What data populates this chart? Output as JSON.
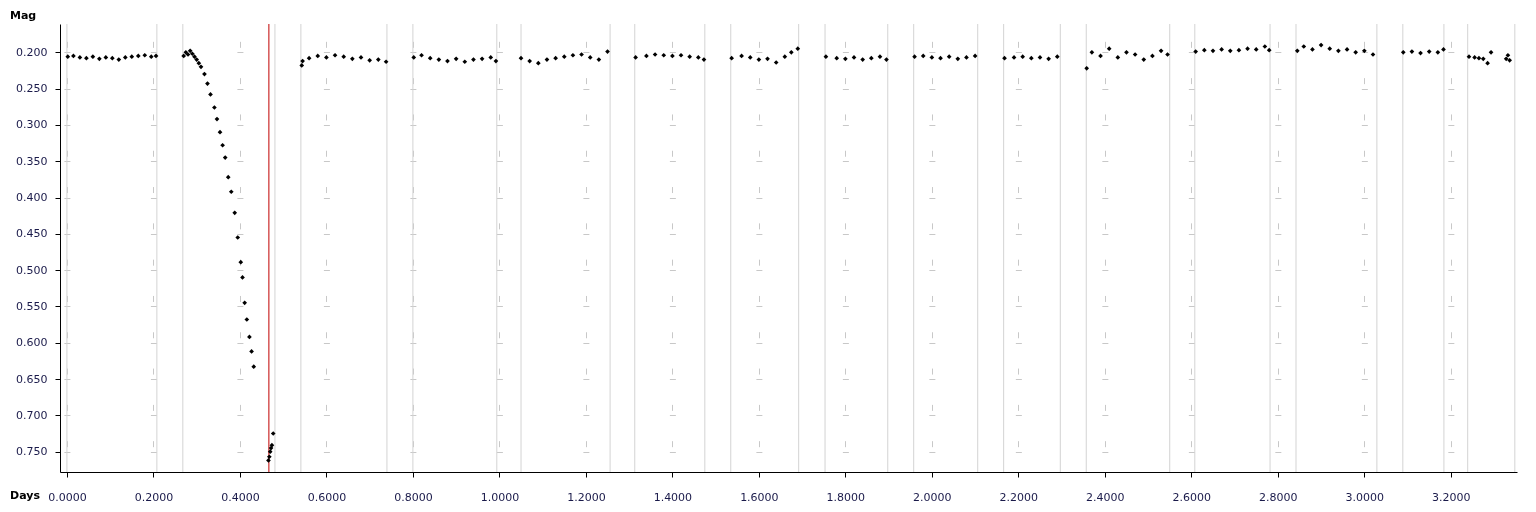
{
  "chart_data": {
    "type": "scatter",
    "xlabel": "Days",
    "ylabel": "Mag",
    "marker": "diamond",
    "grid": true,
    "xlim": [
      -0.016,
      3.353
    ],
    "ylim": [
      0.778,
      0.161
    ],
    "xticks": [
      {
        "value": 0,
        "label": "0.0000"
      },
      {
        "value": 0.2,
        "label": "0.2000"
      },
      {
        "value": 0.4,
        "label": "0.4000"
      },
      {
        "value": 0.6,
        "label": "0.6000"
      },
      {
        "value": 0.8,
        "label": "0.8000"
      },
      {
        "value": 1.0,
        "label": "1.0000"
      },
      {
        "value": 1.2,
        "label": "1.2000"
      },
      {
        "value": 1.4,
        "label": "1.4000"
      },
      {
        "value": 1.6,
        "label": "1.6000"
      },
      {
        "value": 1.8,
        "label": "1.8000"
      },
      {
        "value": 2.0,
        "label": "2.0000"
      },
      {
        "value": 2.2,
        "label": "2.2000"
      },
      {
        "value": 2.4,
        "label": "2.4000"
      },
      {
        "value": 2.6,
        "label": "2.6000"
      },
      {
        "value": 2.8,
        "label": "2.8000"
      },
      {
        "value": 3.0,
        "label": "3.0000"
      },
      {
        "value": 3.2,
        "label": "3.2000"
      }
    ],
    "yticks": [
      {
        "value": 0.2,
        "label": "0.200"
      },
      {
        "value": 0.25,
        "label": "0.250"
      },
      {
        "value": 0.3,
        "label": "0.300"
      },
      {
        "value": 0.35,
        "label": "0.350"
      },
      {
        "value": 0.4,
        "label": "0.400"
      },
      {
        "value": 0.45,
        "label": "0.450"
      },
      {
        "value": 0.5,
        "label": "0.500"
      },
      {
        "value": 0.55,
        "label": "0.550"
      },
      {
        "value": 0.6,
        "label": "0.600"
      },
      {
        "value": 0.65,
        "label": "0.650"
      },
      {
        "value": 0.7,
        "label": "0.700"
      },
      {
        "value": 0.75,
        "label": "0.750"
      }
    ],
    "ref_lines": [
      {
        "axis": "x",
        "value": 0.0,
        "color": "#d3d3d3"
      },
      {
        "axis": "x",
        "value": 0.208,
        "color": "#d3d3d3"
      },
      {
        "axis": "x",
        "value": 0.268,
        "color": "#d3d3d3"
      },
      {
        "axis": "x",
        "value": 0.481,
        "color": "#d3d3d3"
      },
      {
        "axis": "x",
        "value": 0.541,
        "color": "#d3d3d3"
      },
      {
        "axis": "x",
        "value": 0.74,
        "color": "#d3d3d3"
      },
      {
        "axis": "x",
        "value": 0.8,
        "color": "#d3d3d3"
      },
      {
        "axis": "x",
        "value": 0.994,
        "color": "#d3d3d3"
      },
      {
        "axis": "x",
        "value": 1.05,
        "color": "#d3d3d3"
      },
      {
        "axis": "x",
        "value": 1.256,
        "color": "#d3d3d3"
      },
      {
        "axis": "x",
        "value": 1.313,
        "color": "#d3d3d3"
      },
      {
        "axis": "x",
        "value": 1.475,
        "color": "#d3d3d3"
      },
      {
        "axis": "x",
        "value": 1.535,
        "color": "#d3d3d3"
      },
      {
        "axis": "x",
        "value": 1.692,
        "color": "#d3d3d3"
      },
      {
        "axis": "x",
        "value": 1.753,
        "color": "#d3d3d3"
      },
      {
        "axis": "x",
        "value": 1.898,
        "color": "#d3d3d3"
      },
      {
        "axis": "x",
        "value": 1.958,
        "color": "#d3d3d3"
      },
      {
        "axis": "x",
        "value": 2.106,
        "color": "#d3d3d3"
      },
      {
        "axis": "x",
        "value": 2.166,
        "color": "#d3d3d3"
      },
      {
        "axis": "x",
        "value": 2.297,
        "color": "#d3d3d3"
      },
      {
        "axis": "x",
        "value": 2.357,
        "color": "#d3d3d3"
      },
      {
        "axis": "x",
        "value": 2.55,
        "color": "#d3d3d3"
      },
      {
        "axis": "x",
        "value": 2.608,
        "color": "#d3d3d3"
      },
      {
        "axis": "x",
        "value": 2.782,
        "color": "#d3d3d3"
      },
      {
        "axis": "x",
        "value": 2.842,
        "color": "#d3d3d3"
      },
      {
        "axis": "x",
        "value": 3.029,
        "color": "#d3d3d3"
      },
      {
        "axis": "x",
        "value": 3.089,
        "color": "#d3d3d3"
      },
      {
        "axis": "x",
        "value": 3.184,
        "color": "#d3d3d3"
      },
      {
        "axis": "x",
        "value": 3.239,
        "color": "#d3d3d3"
      },
      {
        "axis": "x",
        "value": 3.348,
        "color": "#d3d3d3"
      },
      {
        "axis": "x",
        "value": 0.467,
        "color": "#c00000"
      }
    ],
    "series": [
      {
        "color": "#000000",
        "x": [
          0.002,
          0.015,
          0.03,
          0.045,
          0.06,
          0.075,
          0.09,
          0.105,
          0.12,
          0.135,
          0.15,
          0.165,
          0.18,
          0.195,
          0.206,
          0.27,
          0.275,
          0.28,
          0.285,
          0.29,
          0.295,
          0.3,
          0.305,
          0.31,
          0.318,
          0.325,
          0.332,
          0.341,
          0.347,
          0.354,
          0.36,
          0.366,
          0.373,
          0.38,
          0.388,
          0.395,
          0.402,
          0.406,
          0.411,
          0.416,
          0.422,
          0.427,
          0.432,
          0.466,
          0.468,
          0.47,
          0.472,
          0.474,
          0.477,
          0.543,
          0.545,
          0.56,
          0.58,
          0.6,
          0.62,
          0.64,
          0.66,
          0.68,
          0.7,
          0.72,
          0.738,
          0.802,
          0.82,
          0.84,
          0.86,
          0.88,
          0.9,
          0.92,
          0.94,
          0.96,
          0.98,
          0.992,
          1.05,
          1.07,
          1.09,
          1.11,
          1.13,
          1.15,
          1.17,
          1.19,
          1.21,
          1.23,
          1.25,
          1.315,
          1.34,
          1.36,
          1.38,
          1.4,
          1.42,
          1.44,
          1.46,
          1.473,
          1.537,
          1.56,
          1.58,
          1.6,
          1.62,
          1.64,
          1.66,
          1.675,
          1.69,
          1.755,
          1.78,
          1.8,
          1.82,
          1.84,
          1.86,
          1.88,
          1.895,
          1.96,
          1.98,
          2.0,
          2.02,
          2.04,
          2.06,
          2.08,
          2.1,
          2.168,
          2.19,
          2.21,
          2.23,
          2.25,
          2.27,
          2.29,
          2.358,
          2.37,
          2.39,
          2.41,
          2.43,
          2.45,
          2.47,
          2.49,
          2.51,
          2.53,
          2.545,
          2.61,
          2.63,
          2.65,
          2.67,
          2.69,
          2.71,
          2.73,
          2.75,
          2.77,
          2.78,
          2.845,
          2.86,
          2.88,
          2.9,
          2.92,
          2.94,
          2.96,
          2.98,
          3.0,
          3.02,
          3.09,
          3.11,
          3.13,
          3.15,
          3.17,
          3.183,
          3.242,
          3.255,
          3.265,
          3.275,
          3.285,
          3.293,
          3.328,
          3.332,
          3.336
        ],
        "values": [
          0.206,
          0.205,
          0.207,
          0.208,
          0.206,
          0.209,
          0.207,
          0.208,
          0.21,
          0.207,
          0.206,
          0.205,
          0.204,
          0.206,
          0.205,
          0.205,
          0.2,
          0.203,
          0.198,
          0.202,
          0.206,
          0.21,
          0.215,
          0.22,
          0.23,
          0.243,
          0.258,
          0.276,
          0.292,
          0.31,
          0.328,
          0.345,
          0.372,
          0.392,
          0.421,
          0.455,
          0.489,
          0.51,
          0.545,
          0.568,
          0.592,
          0.612,
          0.633,
          0.762,
          0.757,
          0.75,
          0.745,
          0.741,
          0.725,
          0.218,
          0.212,
          0.208,
          0.205,
          0.207,
          0.204,
          0.206,
          0.209,
          0.207,
          0.211,
          0.21,
          0.213,
          0.207,
          0.204,
          0.208,
          0.21,
          0.212,
          0.209,
          0.213,
          0.21,
          0.209,
          0.207,
          0.212,
          0.208,
          0.212,
          0.215,
          0.21,
          0.208,
          0.206,
          0.204,
          0.203,
          0.207,
          0.21,
          0.199,
          0.207,
          0.205,
          0.203,
          0.204,
          0.205,
          0.204,
          0.206,
          0.207,
          0.21,
          0.208,
          0.205,
          0.207,
          0.21,
          0.209,
          0.214,
          0.206,
          0.2,
          0.195,
          0.206,
          0.208,
          0.209,
          0.207,
          0.21,
          0.208,
          0.206,
          0.21,
          0.206,
          0.205,
          0.207,
          0.208,
          0.206,
          0.209,
          0.207,
          0.205,
          0.208,
          0.207,
          0.206,
          0.208,
          0.207,
          0.209,
          0.206,
          0.222,
          0.2,
          0.205,
          0.195,
          0.207,
          0.2,
          0.203,
          0.21,
          0.205,
          0.198,
          0.203,
          0.199,
          0.197,
          0.198,
          0.196,
          0.198,
          0.197,
          0.195,
          0.196,
          0.192,
          0.197,
          0.198,
          0.192,
          0.196,
          0.19,
          0.195,
          0.198,
          0.196,
          0.2,
          0.198,
          0.203,
          0.2,
          0.199,
          0.201,
          0.199,
          0.2,
          0.196,
          0.206,
          0.207,
          0.208,
          0.209,
          0.215,
          0.2,
          0.209,
          0.204,
          0.211
        ]
      }
    ]
  }
}
